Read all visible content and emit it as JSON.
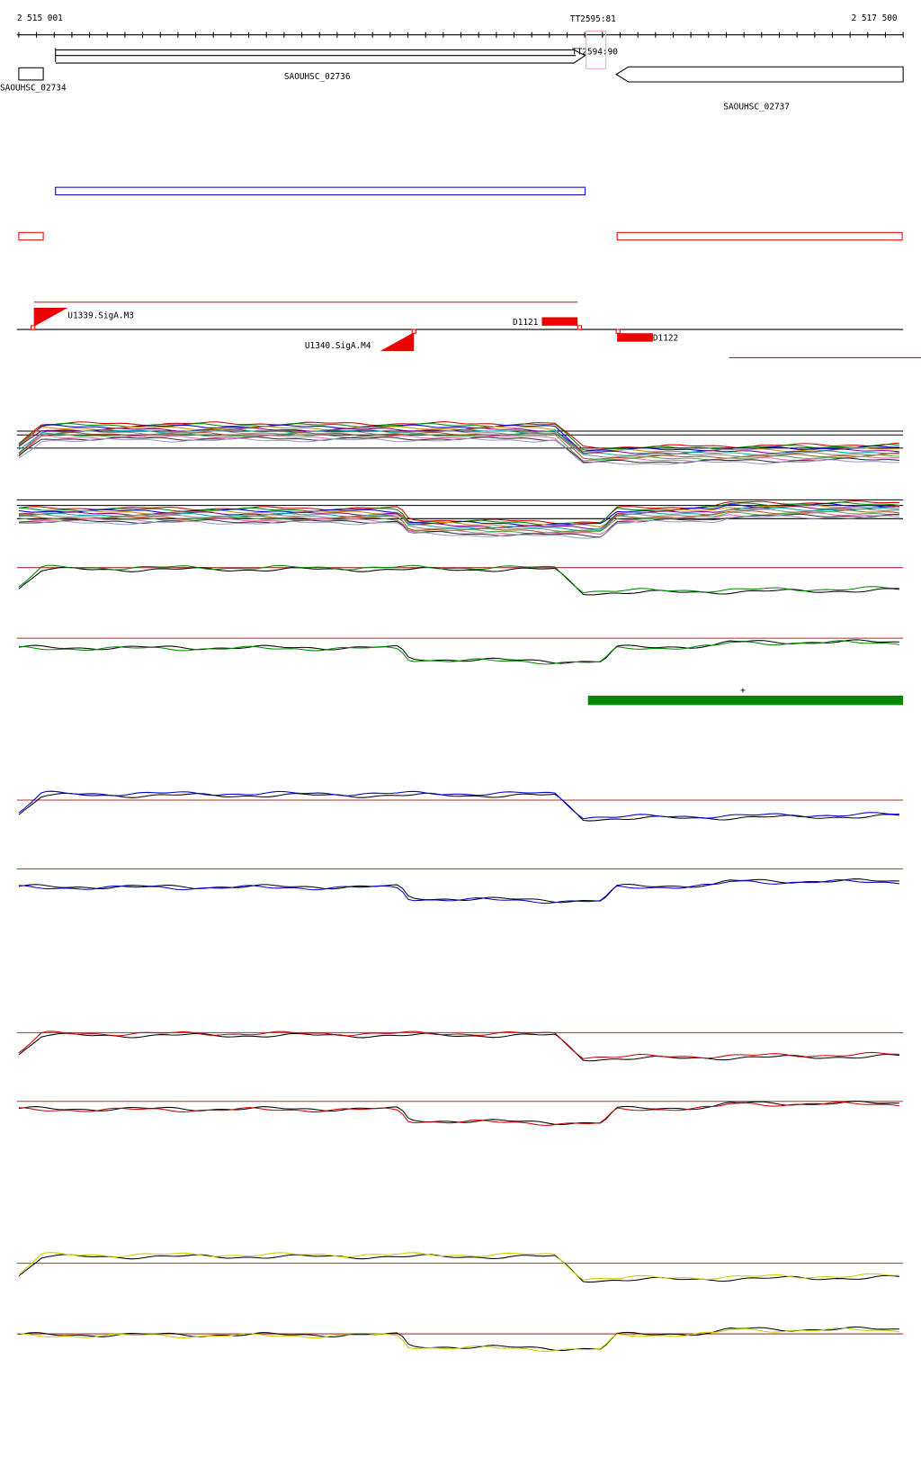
{
  "ruler": {
    "start_label": "2 515 001",
    "end_label": "2 517 500",
    "terminator_1": "TT2595:81",
    "terminator_2": "TT2594:90"
  },
  "genes": [
    {
      "label": "SAOUHSC_02734"
    },
    {
      "label": "SAOUHSC_02736"
    },
    {
      "label": "SAOUHSC_02737"
    }
  ],
  "features": [
    {
      "label": "U1339.SigA.M3"
    },
    {
      "label": "U1340.SigA.M4"
    },
    {
      "label": "D1121"
    },
    {
      "label": "D1122"
    }
  ],
  "segment_strand": "+"
}
